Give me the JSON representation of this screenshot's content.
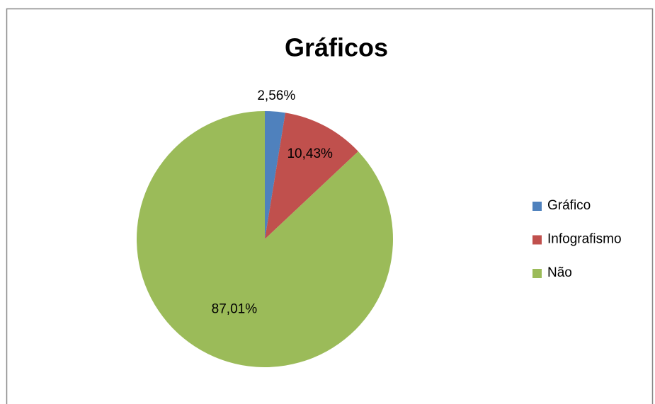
{
  "chart_data": {
    "type": "pie",
    "title": "Gráficos",
    "categories": [
      "Gráfico",
      "Infografismo",
      "Não"
    ],
    "values": [
      2.56,
      10.43,
      87.01
    ],
    "value_labels": [
      "2,56%",
      "10,43%",
      "87,01%"
    ],
    "colors": [
      "#4f81bd",
      "#c0504d",
      "#9bbb59"
    ],
    "legend": "right"
  }
}
